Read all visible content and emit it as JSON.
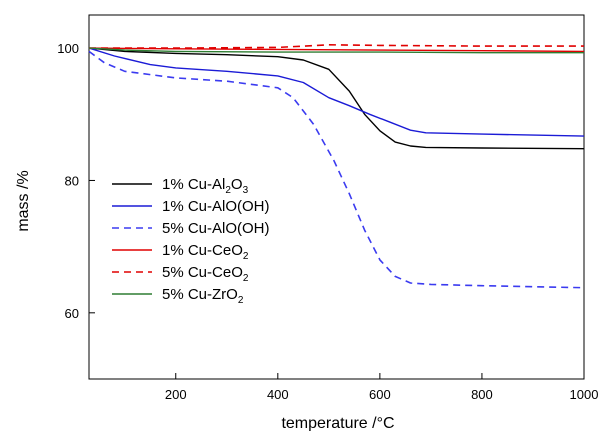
{
  "chart_data": {
    "type": "line",
    "title": "",
    "xlabel": "temperature /°C",
    "ylabel": "mass /%",
    "xlim": [
      30,
      1000
    ],
    "ylim": [
      50,
      105
    ],
    "xticks": [
      200,
      400,
      600,
      800,
      1000
    ],
    "yticks": [
      60,
      80,
      100
    ],
    "grid": false,
    "legend_position": "center-left",
    "series": [
      {
        "name": "1% Cu-Al2O3",
        "label_base": "1% Cu-Al",
        "label_sub1": "2",
        "label_mid": "O",
        "label_sub2": "3",
        "color": "#000000",
        "dash": "solid",
        "points": [
          [
            30,
            100
          ],
          [
            100,
            99.5
          ],
          [
            200,
            99.2
          ],
          [
            300,
            99.0
          ],
          [
            400,
            98.7
          ],
          [
            450,
            98.2
          ],
          [
            500,
            96.8
          ],
          [
            540,
            93.5
          ],
          [
            570,
            90.0
          ],
          [
            600,
            87.5
          ],
          [
            630,
            85.8
          ],
          [
            660,
            85.2
          ],
          [
            690,
            85.0
          ],
          [
            800,
            84.9
          ],
          [
            1000,
            84.8
          ]
        ]
      },
      {
        "name": "1% Cu-AlO(OH)",
        "label_base": "1% Cu-AlO(OH)",
        "color": "#1b1bd6",
        "dash": "solid",
        "points": [
          [
            30,
            100
          ],
          [
            80,
            98.8
          ],
          [
            150,
            97.5
          ],
          [
            200,
            97.0
          ],
          [
            300,
            96.5
          ],
          [
            400,
            95.8
          ],
          [
            450,
            94.8
          ],
          [
            500,
            92.5
          ],
          [
            540,
            91.3
          ],
          [
            580,
            90.0
          ],
          [
            620,
            88.8
          ],
          [
            660,
            87.6
          ],
          [
            690,
            87.2
          ],
          [
            800,
            87.0
          ],
          [
            1000,
            86.7
          ]
        ]
      },
      {
        "name": "5% Cu-AlO(OH)",
        "label_base": "5% Cu-AlO(OH)",
        "color": "#3b3bf0",
        "dash": "dashed",
        "points": [
          [
            30,
            99.5
          ],
          [
            60,
            97.8
          ],
          [
            100,
            96.5
          ],
          [
            200,
            95.5
          ],
          [
            300,
            95.0
          ],
          [
            400,
            94.0
          ],
          [
            430,
            92.5
          ],
          [
            470,
            88.5
          ],
          [
            510,
            83.0
          ],
          [
            540,
            78.0
          ],
          [
            570,
            72.5
          ],
          [
            600,
            68.0
          ],
          [
            630,
            65.5
          ],
          [
            660,
            64.5
          ],
          [
            700,
            64.3
          ],
          [
            800,
            64.1
          ],
          [
            1000,
            63.8
          ]
        ]
      },
      {
        "name": "1% Cu-CeO2",
        "label_base": "1% Cu-CeO",
        "label_sub1": "2",
        "color": "#e00000",
        "dash": "solid",
        "points": [
          [
            30,
            100
          ],
          [
            200,
            99.9
          ],
          [
            400,
            99.8
          ],
          [
            600,
            99.7
          ],
          [
            800,
            99.6
          ],
          [
            1000,
            99.5
          ]
        ]
      },
      {
        "name": "5% Cu-CeO2",
        "label_base": "5% Cu-CeO",
        "label_sub1": "2",
        "color": "#e00000",
        "dash": "dashed",
        "points": [
          [
            30,
            100
          ],
          [
            200,
            100
          ],
          [
            400,
            100.1
          ],
          [
            450,
            100.3
          ],
          [
            500,
            100.5
          ],
          [
            600,
            100.4
          ],
          [
            800,
            100.3
          ],
          [
            1000,
            100.3
          ]
        ]
      },
      {
        "name": "5% Cu-ZrO2",
        "label_base": "5% Cu-ZrO",
        "label_sub1": "2",
        "color": "#2e7d32",
        "dash": "solid",
        "points": [
          [
            30,
            100
          ],
          [
            100,
            99.7
          ],
          [
            200,
            99.5
          ],
          [
            400,
            99.4
          ],
          [
            600,
            99.4
          ],
          [
            800,
            99.3
          ],
          [
            1000,
            99.3
          ]
        ]
      }
    ]
  }
}
